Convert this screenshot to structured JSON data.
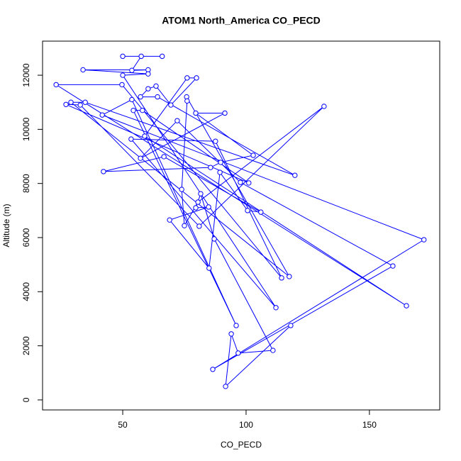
{
  "chart_data": {
    "type": "line",
    "title": "ATOM1 North_America CO_PECD",
    "x_label": "CO_PECD",
    "y_label": "Altitude (m)",
    "xlim": [
      17.5,
      178.5
    ],
    "ylim": [
      -370,
      13260
    ],
    "xticks": [
      50,
      100,
      150
    ],
    "yticks": [
      0,
      2000,
      4000,
      6000,
      8000,
      10000,
      12000
    ],
    "series": [
      {
        "color": "#0000ff",
        "x": [
          50,
          66,
          57.5,
          53.7,
          60.3,
          33.9,
          60.3,
          50,
          112.1,
          53.4,
          87.6,
          114.4,
          49.7,
          23,
          165,
          58.9,
          76.1,
          79.9,
          69.5,
          63.5,
          60.3,
          57.2,
          64.1,
          119.8,
          34.8,
          29,
          117.5,
          75.9,
          76.1,
          73.9,
          75,
          80.5,
          131.6,
          81,
          32.8,
          27,
          101.1,
          58,
          54.3,
          96,
          53.7,
          41.7,
          172.1,
          86.5,
          159.5,
          97.7,
          72.1,
          57.2,
          91.4,
          79.6,
          102.9,
          89.7,
          85.6,
          42.2,
          66.7,
          106,
          100.6,
          89.4,
          85,
          69,
          84.8,
          79.6,
          81.6,
          87.1,
          110.9,
          96.8,
          94,
          91.7,
          118.1
        ],
        "values": [
          12700,
          12700,
          12700,
          12180,
          12200,
          12200,
          12050,
          12000,
          3410,
          9640,
          9560,
          4510,
          11650,
          11650,
          3480,
          9750,
          11900,
          11900,
          10900,
          11600,
          11500,
          11200,
          11200,
          8300,
          11000,
          11000,
          4560,
          11200,
          11050,
          7780,
          6440,
          7310,
          10850,
          6420,
          10900,
          10920,
          8020,
          10700,
          10700,
          2750,
          11100,
          10530,
          5920,
          1130,
          4950,
          8040,
          10320,
          8930,
          10600,
          10600,
          9040,
          8780,
          8590,
          8440,
          8990,
          6940,
          7000,
          8410,
          4870,
          6650,
          7130,
          7100,
          7620,
          5950,
          1830,
          1730,
          2440,
          500,
          2750
        ]
      }
    ]
  }
}
